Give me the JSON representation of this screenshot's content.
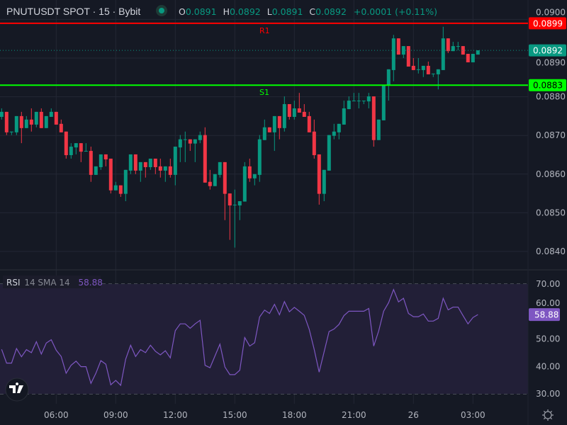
{
  "header": {
    "symbol_title": "PNUTUSDT SPOT · 15 · Bybit",
    "status_dot_color": "#089981",
    "ohlc": {
      "o_label": "O",
      "o_value": "0.0891",
      "h_label": "H",
      "h_value": "0.0892",
      "l_label": "L",
      "l_value": "0.0891",
      "c_label": "C",
      "c_value": "0.0892",
      "change": "+0.0001 (+0.11%)"
    }
  },
  "colors": {
    "up": "#089981",
    "down": "#f23645",
    "resistance": "#ff0000",
    "support": "#00ff00",
    "rsi": "#7e57c2",
    "background": "#151924"
  },
  "levels": {
    "r1": {
      "label": "R1",
      "price": 0.0899,
      "tag": "0.0899"
    },
    "s1": {
      "label": "S1",
      "price": 0.0883,
      "tag": "0.0883"
    },
    "last": {
      "price": 0.0892,
      "tag": "0.0892"
    }
  },
  "chart_data": [
    {
      "type": "candlestick",
      "interval": "15",
      "price_axis": {
        "ticks": [
          "0.0900",
          "0.0890",
          "0.0880",
          "0.0870",
          "0.0860",
          "0.0850",
          "0.0840"
        ],
        "tick_values": [
          0.09,
          0.089,
          0.088,
          0.087,
          0.086,
          0.085,
          0.084
        ]
      },
      "x_ticks": [
        {
          "label": "06:00",
          "candle": 11
        },
        {
          "label": "09:00",
          "candle": 23
        },
        {
          "label": "12:00",
          "candle": 35
        },
        {
          "label": "15:00",
          "candle": 47
        },
        {
          "label": "18:00",
          "candle": 59
        },
        {
          "label": "21:00",
          "candle": 71
        },
        {
          "label": "26",
          "candle": 83
        },
        {
          "label": "03:00",
          "candle": 95
        }
      ],
      "grid": true,
      "ohlc": [
        [
          0.08748,
          0.0877,
          0.08741,
          0.08761
        ],
        [
          0.08761,
          0.08761,
          0.08701,
          0.08708
        ],
        [
          0.08708,
          0.0871,
          0.08701,
          0.0871
        ],
        [
          0.08708,
          0.0875,
          0.08701,
          0.0875
        ],
        [
          0.0875,
          0.08761,
          0.0868,
          0.08719
        ],
        [
          0.08719,
          0.0875,
          0.08719,
          0.08741
        ],
        [
          0.08741,
          0.0877,
          0.0871,
          0.08728
        ],
        [
          0.08728,
          0.08761,
          0.08721,
          0.08761
        ],
        [
          0.08761,
          0.0877,
          0.08719,
          0.08719
        ],
        [
          0.08719,
          0.0875,
          0.08719,
          0.0875
        ],
        [
          0.08748,
          0.0877,
          0.08748,
          0.08761
        ],
        [
          0.08761,
          0.08761,
          0.08728,
          0.08728
        ],
        [
          0.0873,
          0.08741,
          0.08708,
          0.08708
        ],
        [
          0.0871,
          0.0871,
          0.0864,
          0.08649
        ],
        [
          0.08649,
          0.0868,
          0.0864,
          0.08671
        ],
        [
          0.08669,
          0.0868,
          0.08651,
          0.0868
        ],
        [
          0.0868,
          0.0868,
          0.08631,
          0.08658
        ],
        [
          0.0866,
          0.0868,
          0.0866,
          0.0866
        ],
        [
          0.0866,
          0.08671,
          0.0858,
          0.08598
        ],
        [
          0.08598,
          0.0862,
          0.08598,
          0.0862
        ],
        [
          0.08618,
          0.08651,
          0.08611,
          0.08651
        ],
        [
          0.08651,
          0.08651,
          0.0862,
          0.08638
        ],
        [
          0.0864,
          0.0864,
          0.0855,
          0.08558
        ],
        [
          0.08558,
          0.0858,
          0.08558,
          0.08571
        ],
        [
          0.08571,
          0.08571,
          0.08541,
          0.08549
        ],
        [
          0.08549,
          0.08611,
          0.0853,
          0.08611
        ],
        [
          0.08609,
          0.08651,
          0.086,
          0.08651
        ],
        [
          0.08651,
          0.08651,
          0.086,
          0.08609
        ],
        [
          0.08609,
          0.08631,
          0.0858,
          0.08631
        ],
        [
          0.08631,
          0.08631,
          0.08591,
          0.08618
        ],
        [
          0.08618,
          0.0864,
          0.08611,
          0.0864
        ],
        [
          0.0864,
          0.0864,
          0.086,
          0.08618
        ],
        [
          0.0862,
          0.0864,
          0.08591,
          0.08609
        ],
        [
          0.08609,
          0.0862,
          0.0858,
          0.0862
        ],
        [
          0.0862,
          0.0864,
          0.08591,
          0.08598
        ],
        [
          0.08598,
          0.08671,
          0.08571,
          0.08671
        ],
        [
          0.08669,
          0.08701,
          0.08631,
          0.0869
        ],
        [
          0.0869,
          0.0871,
          0.08631,
          0.0869
        ],
        [
          0.0869,
          0.0869,
          0.0866,
          0.08679
        ],
        [
          0.08679,
          0.0869,
          0.08631,
          0.0869
        ],
        [
          0.08688,
          0.0871,
          0.0868,
          0.08701
        ],
        [
          0.08701,
          0.08721,
          0.08578,
          0.08578
        ],
        [
          0.0858,
          0.08611,
          0.0856,
          0.08569
        ],
        [
          0.08569,
          0.086,
          0.08569,
          0.086
        ],
        [
          0.08598,
          0.08631,
          0.08591,
          0.08631
        ],
        [
          0.08631,
          0.08631,
          0.08481,
          0.08549
        ],
        [
          0.0855,
          0.0855,
          0.0843,
          0.08519
        ],
        [
          0.08521,
          0.0856,
          0.0841,
          0.08521
        ],
        [
          0.08519,
          0.0853,
          0.08481,
          0.0853
        ],
        [
          0.08529,
          0.08631,
          0.08529,
          0.0862
        ],
        [
          0.0862,
          0.0864,
          0.0858,
          0.08589
        ],
        [
          0.08589,
          0.086,
          0.08571,
          0.086
        ],
        [
          0.08598,
          0.08701,
          0.0858,
          0.0869
        ],
        [
          0.08688,
          0.08741,
          0.08688,
          0.08721
        ],
        [
          0.08721,
          0.08721,
          0.08708,
          0.08708
        ],
        [
          0.08708,
          0.0875,
          0.0866,
          0.0875
        ],
        [
          0.0875,
          0.0875,
          0.0869,
          0.08719
        ],
        [
          0.08719,
          0.08801,
          0.0871,
          0.08781
        ],
        [
          0.08781,
          0.08781,
          0.08741,
          0.08748
        ],
        [
          0.08748,
          0.0879,
          0.08741,
          0.0877
        ],
        [
          0.0877,
          0.0881,
          0.08759,
          0.08759
        ],
        [
          0.08761,
          0.08781,
          0.08748,
          0.08748
        ],
        [
          0.0875,
          0.08761,
          0.08708,
          0.08708
        ],
        [
          0.0871,
          0.08741,
          0.0864,
          0.08649
        ],
        [
          0.08651,
          0.08651,
          0.08521,
          0.08549
        ],
        [
          0.08549,
          0.08611,
          0.0853,
          0.08611
        ],
        [
          0.08609,
          0.08701,
          0.08609,
          0.08701
        ],
        [
          0.08699,
          0.0873,
          0.0869,
          0.0871
        ],
        [
          0.08708,
          0.0873,
          0.0869,
          0.0873
        ],
        [
          0.08728,
          0.0879,
          0.08728,
          0.0877
        ],
        [
          0.08768,
          0.08801,
          0.08768,
          0.0879
        ],
        [
          0.0879,
          0.0881,
          0.0879,
          0.0879
        ],
        [
          0.0879,
          0.0881,
          0.0877,
          0.0879
        ],
        [
          0.0879,
          0.0879,
          0.08781,
          0.0879
        ],
        [
          0.08788,
          0.0881,
          0.0877,
          0.08801
        ],
        [
          0.08801,
          0.08801,
          0.08671,
          0.08688
        ],
        [
          0.08688,
          0.08741,
          0.08688,
          0.08741
        ],
        [
          0.08739,
          0.0883,
          0.08739,
          0.0883
        ],
        [
          0.08829,
          0.08871,
          0.0879,
          0.08871
        ],
        [
          0.08869,
          0.0896,
          0.0884,
          0.08951
        ],
        [
          0.08951,
          0.08951,
          0.08909,
          0.08909
        ],
        [
          0.08909,
          0.08931,
          0.089,
          0.08931
        ],
        [
          0.08931,
          0.08931,
          0.08878,
          0.08878
        ],
        [
          0.0888,
          0.089,
          0.08869,
          0.08869
        ],
        [
          0.08871,
          0.089,
          0.0886,
          0.08871
        ],
        [
          0.08869,
          0.0888,
          0.08851,
          0.0888
        ],
        [
          0.0888,
          0.08891,
          0.08858,
          0.08858
        ],
        [
          0.0886,
          0.0886,
          0.08851,
          0.0886
        ],
        [
          0.08858,
          0.08871,
          0.08819,
          0.08871
        ],
        [
          0.08869,
          0.08981,
          0.08869,
          0.08951
        ],
        [
          0.08951,
          0.08951,
          0.08913,
          0.08918
        ],
        [
          0.08918,
          0.08942,
          0.08918,
          0.08931
        ],
        [
          0.08931,
          0.08942,
          0.0892,
          0.08931
        ],
        [
          0.08931,
          0.08931,
          0.08909,
          0.08909
        ],
        [
          0.08911,
          0.08911,
          0.08889,
          0.08889
        ],
        [
          0.08889,
          0.08911,
          0.08889,
          0.08911
        ],
        [
          0.08909,
          0.0892,
          0.08909,
          0.0892
        ]
      ]
    },
    {
      "type": "line",
      "title": "RSI",
      "params": "14 SMA 14",
      "last_value": "58.88",
      "ylim": [
        30,
        70
      ],
      "y_ticks": [
        "70.00",
        "60.00",
        "50.00",
        "40.00",
        "30.00"
      ],
      "y_tick_values": [
        70,
        60,
        50,
        40,
        30
      ],
      "bands": [
        30,
        70
      ],
      "values": [
        46.2,
        41.2,
        41.2,
        46.5,
        43.5,
        46.1,
        45.0,
        49.0,
        44.5,
        48.5,
        49.7,
        45.9,
        43.6,
        37.5,
        40.4,
        41.9,
        39.9,
        39.9,
        33.8,
        37.5,
        42.1,
        40.8,
        33.3,
        34.9,
        33.1,
        42.6,
        47.7,
        43.6,
        46.1,
        45.0,
        47.7,
        45.5,
        44.2,
        45.7,
        43.1,
        53.0,
        55.5,
        55.5,
        53.9,
        55.5,
        56.8,
        40.4,
        39.5,
        43.8,
        48.1,
        39.8,
        37.0,
        37.0,
        38.6,
        50.5,
        47.4,
        48.6,
        58.0,
        60.5,
        59.3,
        62.6,
        58.8,
        63.6,
        59.9,
        61.5,
        60.1,
        58.6,
        53.5,
        46.2,
        37.9,
        45.3,
        52.7,
        53.6,
        55.3,
        58.5,
        60.1,
        60.1,
        60.1,
        60.1,
        61.1,
        47.4,
        52.9,
        60.1,
        63.2,
        68.0,
        63.5,
        64.8,
        59.3,
        58.1,
        58.1,
        59.1,
        56.5,
        56.5,
        57.5,
        64.8,
        60.6,
        61.6,
        61.6,
        58.5,
        55.5,
        57.8,
        58.88
      ]
    }
  ],
  "icons": {
    "logo": "tradingview-logo",
    "settings": "gear-icon"
  }
}
